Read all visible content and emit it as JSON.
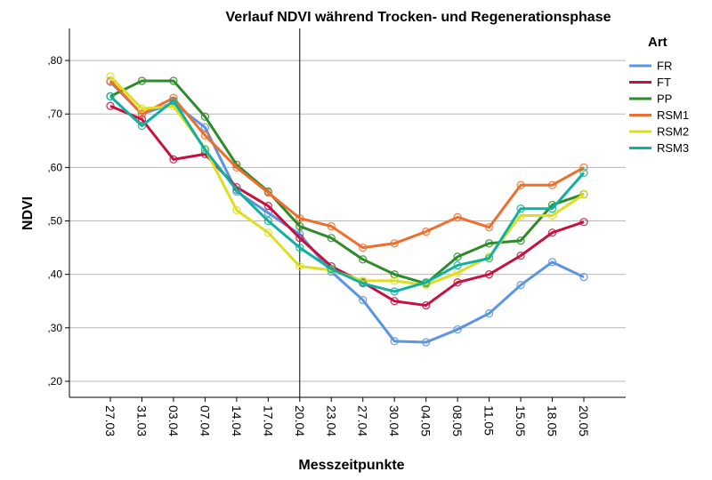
{
  "chart_data": {
    "type": "line",
    "title": "Verlauf NDVI während Trocken- und Regenerationsphase",
    "xlabel": "Messzeitpunkte",
    "ylabel": "NDVI",
    "categories": [
      "27.03",
      "31.03",
      "03.04",
      "07.04",
      "14.04",
      "17.04",
      "20.04",
      "23.04",
      "27.04",
      "30.04",
      "04.05",
      "08.05",
      "11.05",
      "15.05",
      "18.05",
      "20.05"
    ],
    "yticks": [
      {
        "value": 0.2,
        "label": ",20"
      },
      {
        "value": 0.3,
        "label": ",30"
      },
      {
        "value": 0.4,
        "label": ",40"
      },
      {
        "value": 0.5,
        "label": ",50"
      },
      {
        "value": 0.6,
        "label": ",60"
      },
      {
        "value": 0.7,
        "label": ",70"
      },
      {
        "value": 0.8,
        "label": ",80"
      }
    ],
    "ylim": [
      0.17,
      0.86
    ],
    "grid": "horizontal",
    "reference_line_category": "20.04",
    "legend": {
      "title": "Art",
      "placement": "right"
    },
    "series": [
      {
        "name": "FR",
        "color": "#5b94e0",
        "values": [
          0.76,
          0.7,
          0.72,
          0.675,
          0.555,
          0.515,
          0.475,
          0.405,
          0.352,
          0.275,
          0.273,
          0.297,
          0.327,
          0.38,
          0.423,
          0.395
        ]
      },
      {
        "name": "FT",
        "color": "#c8103f",
        "values": [
          0.715,
          0.69,
          0.615,
          0.625,
          0.563,
          0.528,
          0.468,
          0.415,
          0.385,
          0.35,
          0.342,
          0.385,
          0.4,
          0.435,
          0.478,
          0.498
        ]
      },
      {
        "name": "PP",
        "color": "#2e8b2a",
        "values": [
          0.733,
          0.762,
          0.762,
          0.695,
          0.605,
          0.555,
          0.49,
          0.468,
          0.428,
          0.4,
          0.383,
          0.433,
          0.458,
          0.463,
          0.53,
          0.55
        ]
      },
      {
        "name": "RSM1",
        "color": "#f06e2c",
        "values": [
          0.762,
          0.7,
          0.73,
          0.66,
          0.6,
          0.553,
          0.505,
          0.49,
          0.45,
          0.458,
          0.48,
          0.507,
          0.488,
          0.567,
          0.567,
          0.6
        ]
      },
      {
        "name": "RSM2",
        "color": "#dddd22",
        "values": [
          0.77,
          0.71,
          0.715,
          0.635,
          0.52,
          0.478,
          0.415,
          0.408,
          0.388,
          0.388,
          0.38,
          0.403,
          0.433,
          0.51,
          0.51,
          0.55
        ]
      },
      {
        "name": "RSM3",
        "color": "#10b0a0",
        "values": [
          0.733,
          0.678,
          0.725,
          0.633,
          0.558,
          0.5,
          0.45,
          0.41,
          0.383,
          0.368,
          0.385,
          0.417,
          0.43,
          0.523,
          0.523,
          0.59
        ]
      }
    ]
  }
}
